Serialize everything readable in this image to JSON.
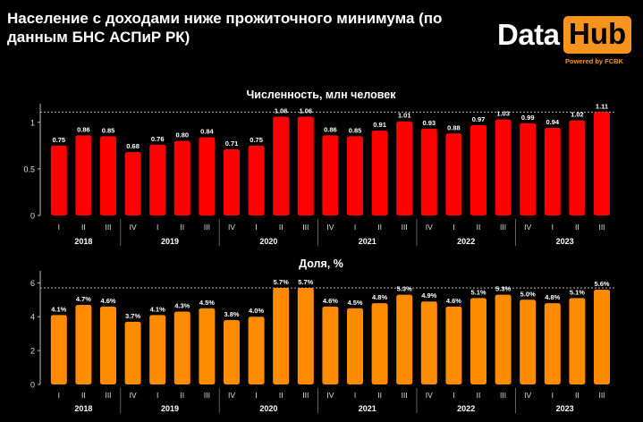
{
  "header": {
    "title": "Население с доходами ниже прожиточного минимума (по данным БНС АСПиР РК)"
  },
  "logo": {
    "word1": "Data",
    "word2": "Hub",
    "tagline": "Powered by FCBK"
  },
  "colors": {
    "background": "#000000",
    "red_bars": "#ff0000",
    "orange_bars": "#ff8c00",
    "brand_orange": "#f7941d"
  },
  "chart_data": [
    {
      "type": "bar",
      "title": "Численность, млн человек",
      "categories": [
        "I",
        "II",
        "III",
        "IV",
        "I",
        "II",
        "III",
        "IV",
        "I",
        "II",
        "III",
        "IV",
        "I",
        "II",
        "III",
        "IV",
        "I",
        "II",
        "III",
        "IV",
        "I",
        "II",
        "III"
      ],
      "year_groups": [
        {
          "label": "2018",
          "count": 3
        },
        {
          "label": "2019",
          "count": 4
        },
        {
          "label": "2020",
          "count": 4
        },
        {
          "label": "2021",
          "count": 4
        },
        {
          "label": "2022",
          "count": 4
        },
        {
          "label": "2023",
          "count": 4
        }
      ],
      "values": [
        0.75,
        0.86,
        0.85,
        0.68,
        0.76,
        0.8,
        0.84,
        0.71,
        0.75,
        1.06,
        1.06,
        0.86,
        0.85,
        0.91,
        1.01,
        0.93,
        0.88,
        0.97,
        1.03,
        0.99,
        0.94,
        1.02,
        1.11
      ],
      "labels": [
        "0.75",
        "0.86",
        "0.85",
        "0.68",
        "0.76",
        "0.80",
        "0.84",
        "0.71",
        "0.75",
        "1.06",
        "1.06",
        "0.86",
        "0.85",
        "0.91",
        "1.01",
        "0.93",
        "0.88",
        "0.97",
        "1.03",
        "0.99",
        "0.94",
        "1.02",
        "1.11"
      ],
      "yticks": [
        "0",
        "0.5",
        "1"
      ],
      "ylim": [
        0,
        1.18
      ],
      "reference_line": 1.11,
      "color": "#ff0000"
    },
    {
      "type": "bar",
      "title": "Доля, %",
      "categories": [
        "I",
        "II",
        "III",
        "IV",
        "I",
        "II",
        "III",
        "IV",
        "I",
        "II",
        "III",
        "IV",
        "I",
        "II",
        "III",
        "IV",
        "I",
        "II",
        "III",
        "IV",
        "I",
        "II",
        "III"
      ],
      "year_groups": [
        {
          "label": "2018",
          "count": 3
        },
        {
          "label": "2019",
          "count": 4
        },
        {
          "label": "2020",
          "count": 4
        },
        {
          "label": "2021",
          "count": 4
        },
        {
          "label": "2022",
          "count": 4
        },
        {
          "label": "2023",
          "count": 4
        }
      ],
      "values": [
        4.1,
        4.7,
        4.6,
        3.7,
        4.1,
        4.3,
        4.5,
        3.8,
        4.0,
        5.7,
        5.7,
        4.6,
        4.5,
        4.8,
        5.3,
        4.9,
        4.6,
        5.1,
        5.3,
        5.0,
        4.8,
        5.1,
        5.6
      ],
      "labels": [
        "4.1%",
        "4.7%",
        "4.6%",
        "3.7%",
        "4.1%",
        "4.3%",
        "4.5%",
        "3.8%",
        "4.0%",
        "5.7%",
        "5.7%",
        "4.6%",
        "4.5%",
        "4.8%",
        "5.3%",
        "4.9%",
        "4.6%",
        "5.1%",
        "5.3%",
        "5.0%",
        "4.8%",
        "5.1%",
        "5.6%"
      ],
      "yticks": [
        "0",
        "2",
        "4",
        "6"
      ],
      "ylim": [
        0,
        6.6
      ],
      "reference_line": 5.7,
      "color": "#ff8c00"
    }
  ]
}
